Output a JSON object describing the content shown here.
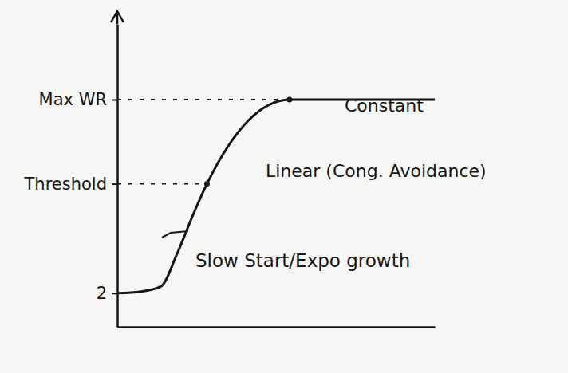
{
  "chart_data": {
    "type": "line",
    "xlim": [
      0,
      40
    ],
    "ylim": [
      0,
      18
    ],
    "yticks": [
      2,
      {
        "value": 8.5,
        "label": "Threshold"
      },
      {
        "value": 13.5,
        "label": "Max WR"
      }
    ],
    "tick_labels": "y",
    "x": [
      0,
      3,
      5.5,
      7.5,
      9.5,
      11.3,
      21.7,
      40
    ],
    "values": [
      2,
      2.1,
      2.4,
      4.3,
      6.6,
      8.5,
      13.5,
      13.5
    ],
    "color": "#151515",
    "annotations": [
      "Constant",
      "Linear (Cong. Avoidance)",
      "Slow Start/Expo growth"
    ]
  }
}
